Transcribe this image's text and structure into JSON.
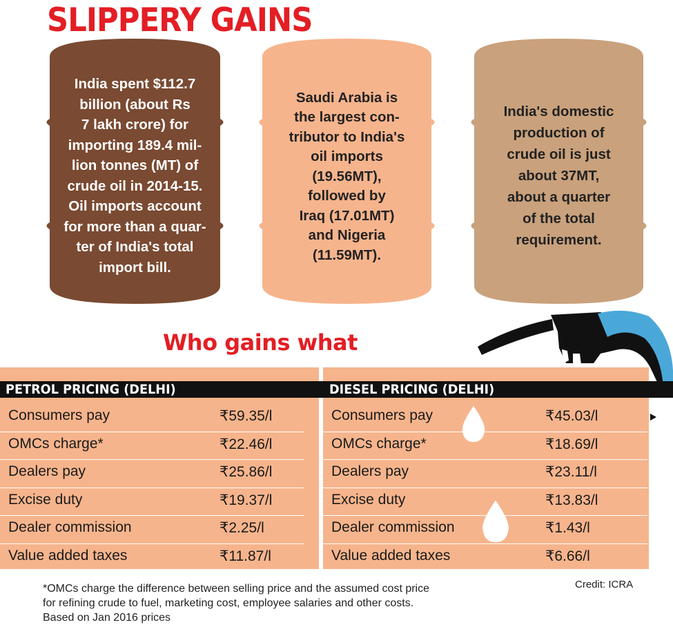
{
  "title": "SLIPPERY GAINS",
  "barrels": [
    {
      "text": "India spent $112.7\nbillion (about Rs\n7 lakh crore) for\nimporting 189.4 mil-\nlion tonnes (MT) of\ncrude oil in 2014-15.\nOil imports account\nfor more than a quar-\nter of India's total\nimport bill.",
      "color": "#7a4a32"
    },
    {
      "text": "Saudi Arabia is\nthe largest con-\ntributor to India's\noil imports\n(19.56MT),\nfollowed by\nIraq (17.01MT)\nand Nigeria\n(11.59MT).",
      "color": "#f6b48c"
    },
    {
      "text": "India's domestic\nproduction of\ncrude oil is just\nabout 37MT,\nabout a quarter\nof the total\nrequirement.",
      "color": "#c9a17c"
    }
  ],
  "subtitle": "Who gains what",
  "petrol": {
    "heading": "PETROL PRICING (DELHI)",
    "rows": [
      {
        "label": "Consumers pay",
        "value": "₹59.35/l"
      },
      {
        "label": "OMCs charge*",
        "value": "₹22.46/l"
      },
      {
        "label": "Dealers pay",
        "value": "₹25.86/l"
      },
      {
        "label": "Excise duty",
        "value": "₹19.37/l"
      },
      {
        "label": "Dealer commission",
        "value": "₹2.25/l"
      },
      {
        "label": "Value added taxes",
        "value": "₹11.87/l"
      }
    ]
  },
  "diesel": {
    "heading": "DIESEL PRICING (DELHI)",
    "rows": [
      {
        "label": "Consumers pay",
        "value": "₹45.03/l"
      },
      {
        "label": "OMCs charge*",
        "value": "₹18.69/l"
      },
      {
        "label": "Dealers pay",
        "value": "₹23.11/l"
      },
      {
        "label": "Excise duty",
        "value": "₹13.83/l"
      },
      {
        "label": "Dealer commission",
        "value": "₹1.43/l"
      },
      {
        "label": "Value added taxes",
        "value": "₹6.66/l"
      }
    ]
  },
  "footnote": [
    "*OMCs charge the difference between selling price and the assumed cost price",
    "for refining crude to fuel, marketing cost, employee salaries and other costs.",
    "Based on Jan 2016 prices"
  ],
  "credit": "Credit: ICRA",
  "colors": {
    "red": "#e31e24",
    "panel": "#f6b48c",
    "nozzle_blue": "#4aa8d8"
  },
  "icons": [
    "oil-barrel-icon",
    "fuel-nozzle-icon",
    "oil-drop-icon"
  ]
}
